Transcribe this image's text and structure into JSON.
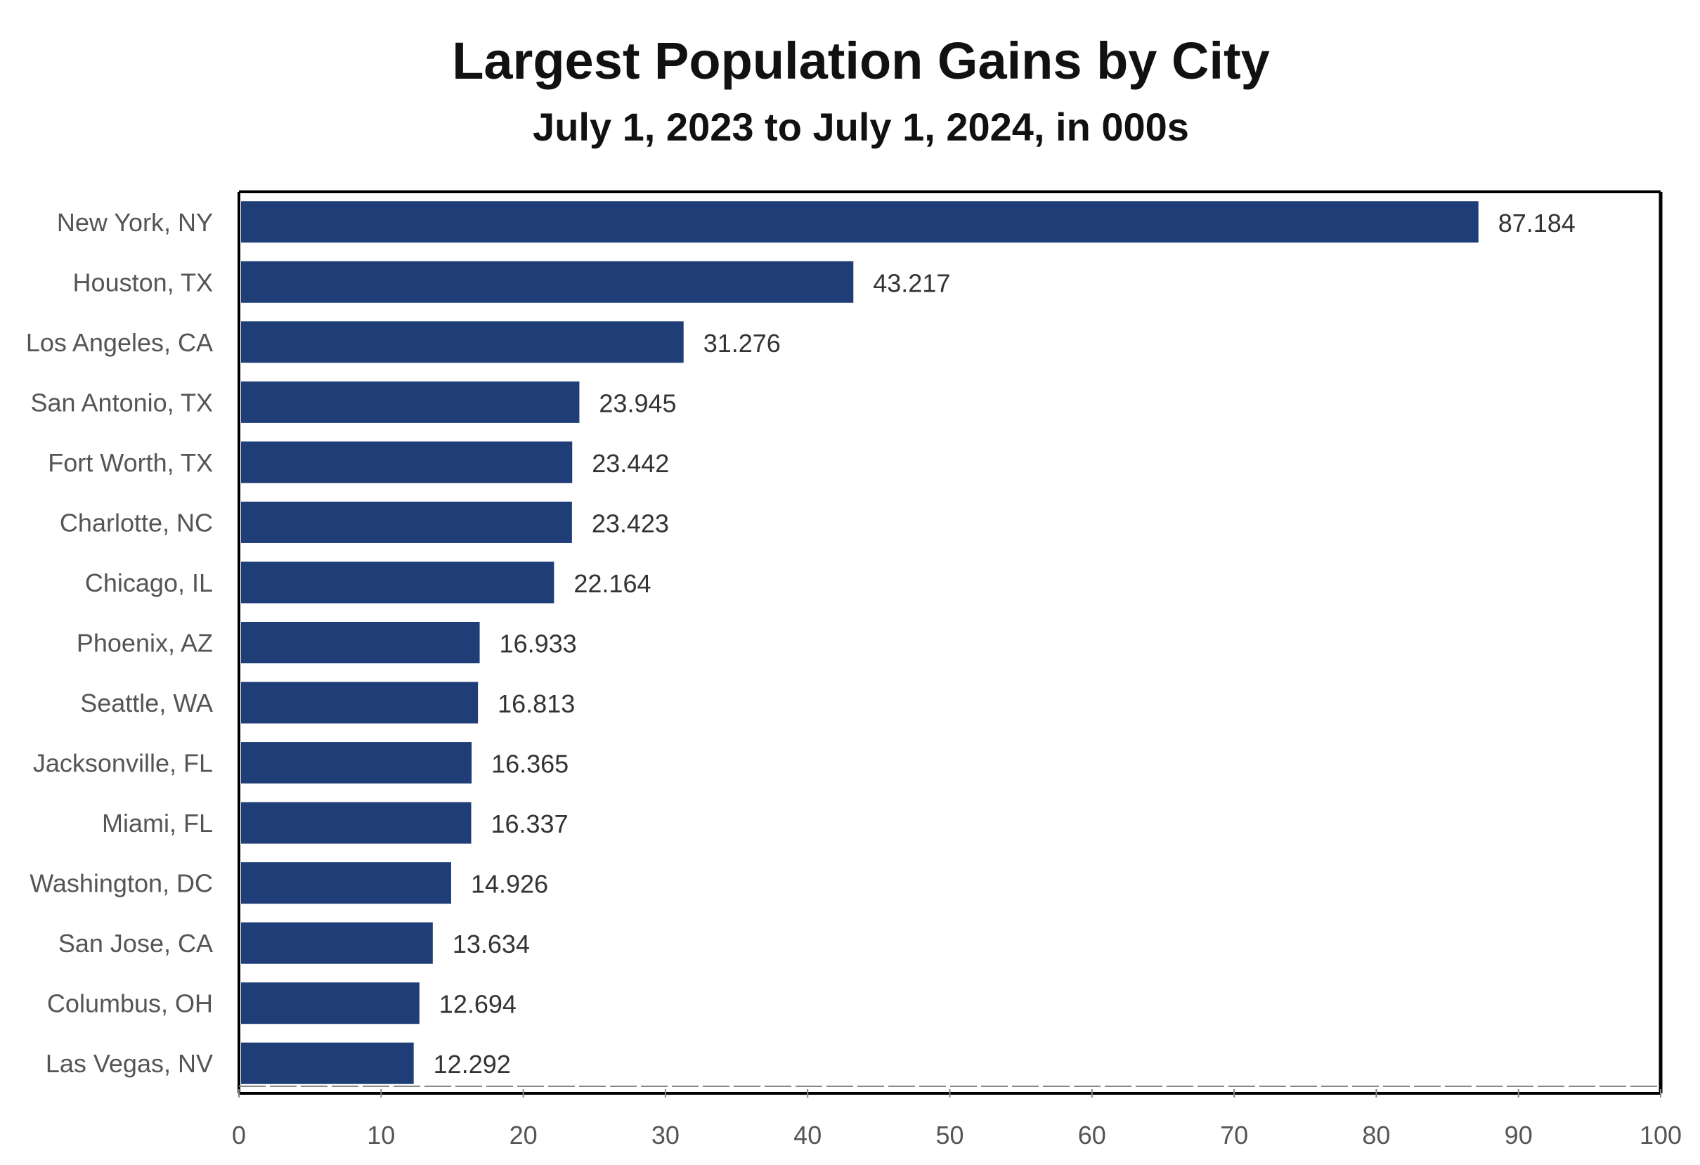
{
  "chart_data": {
    "type": "bar",
    "orientation": "horizontal",
    "title": "Largest Population Gains by City",
    "subtitle": "July 1, 2023 to July 1, 2024, in 000s",
    "xlabel": "",
    "ylabel": "",
    "xlim": [
      0,
      100
    ],
    "xticks": [
      0,
      10,
      20,
      30,
      40,
      50,
      60,
      70,
      80,
      90,
      100
    ],
    "grid": false,
    "legend": "none",
    "bar_color": "#1f3e77",
    "categories": [
      "New York, NY",
      "Houston, TX",
      "Los Angeles, CA",
      "San Antonio, TX",
      "Fort Worth, TX",
      "Charlotte, NC",
      "Chicago, IL",
      "Phoenix, AZ",
      "Seattle, WA",
      "Jacksonville, FL",
      "Miami, FL",
      "Washington, DC",
      "San Jose, CA",
      "Columbus, OH",
      "Las Vegas, NV"
    ],
    "values": [
      87.184,
      43.217,
      31.276,
      23.945,
      23.442,
      23.423,
      22.164,
      16.933,
      16.813,
      16.365,
      16.337,
      14.926,
      13.634,
      12.694,
      12.292
    ],
    "value_labels": [
      "87.184",
      "43.217",
      "31.276",
      "23.945",
      "23.442",
      "23.423",
      "22.164",
      "16.933",
      "16.813",
      "16.365",
      "16.337",
      "14.926",
      "13.634",
      "12.694",
      "12.292"
    ]
  }
}
